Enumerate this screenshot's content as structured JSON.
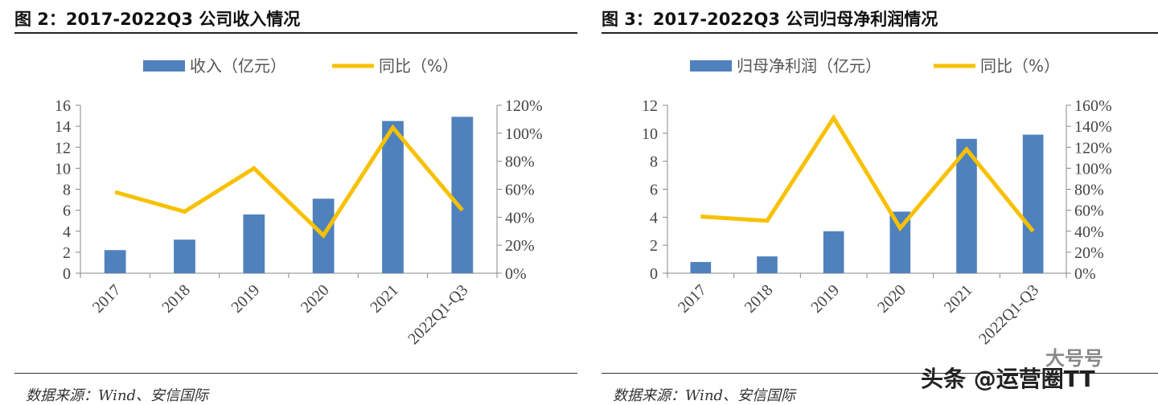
{
  "chart_data": [
    {
      "type": "bar",
      "title": "图 2：2017-2022Q3 公司收入情况",
      "categories": [
        "2017",
        "2018",
        "2019",
        "2020",
        "2021",
        "2022Q1-Q3"
      ],
      "series": [
        {
          "name": "收入（亿元）",
          "type": "bar",
          "axis": "left",
          "color": "#4f81bd",
          "values": [
            2.2,
            3.2,
            5.6,
            7.1,
            14.5,
            14.9
          ]
        },
        {
          "name": "同比（%）",
          "type": "line",
          "axis": "right",
          "color": "#f7c100",
          "values": [
            58,
            44,
            75,
            27,
            104,
            45
          ]
        }
      ],
      "ylim": [
        0,
        16
      ],
      "yticks": [
        "0",
        "2",
        "4",
        "6",
        "8",
        "10",
        "12",
        "14",
        "16"
      ],
      "y2lim": [
        0,
        120
      ],
      "y2ticks": [
        "0%",
        "20%",
        "40%",
        "60%",
        "80%",
        "100%",
        "120%"
      ],
      "legend_position": "top-center",
      "source": "数据来源：Wind、安信国际"
    },
    {
      "type": "bar",
      "title": "图 3：2017-2022Q3 公司归母净利润情况",
      "categories": [
        "2017",
        "2018",
        "2019",
        "2020",
        "2021",
        "2022Q1-Q3"
      ],
      "series": [
        {
          "name": "归母净利润（亿元）",
          "type": "bar",
          "axis": "left",
          "color": "#4f81bd",
          "values": [
            0.8,
            1.2,
            3.0,
            4.4,
            9.6,
            9.9
          ]
        },
        {
          "name": "同比（%）",
          "type": "line",
          "axis": "right",
          "color": "#f7c100",
          "values": [
            54,
            50,
            148,
            43,
            118,
            40
          ]
        }
      ],
      "ylim": [
        0,
        12
      ],
      "yticks": [
        "0",
        "2",
        "4",
        "6",
        "8",
        "10",
        "12"
      ],
      "y2lim": [
        0,
        160
      ],
      "y2ticks": [
        "0%",
        "20%",
        "40%",
        "60%",
        "80%",
        "100%",
        "120%",
        "140%",
        "160%"
      ],
      "legend_position": "top-center",
      "source": "数据来源：Wind、安信国际"
    }
  ],
  "watermark": "头条 @运营圈TT",
  "watermark_small": "大号号"
}
